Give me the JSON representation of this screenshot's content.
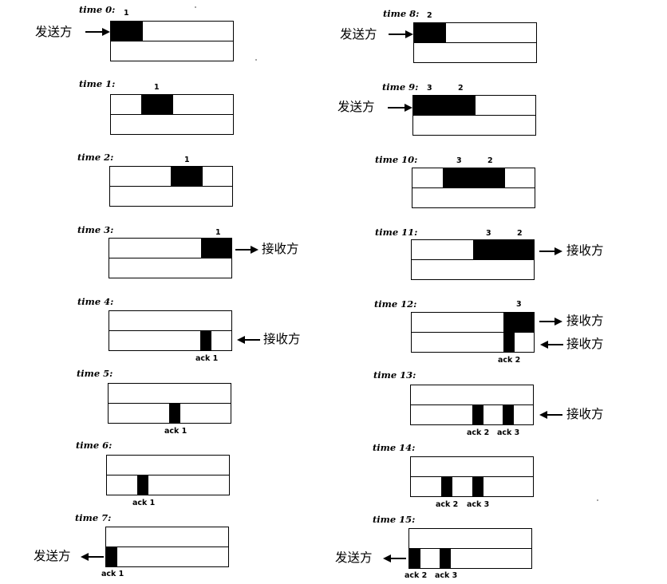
{
  "labels": {
    "sender": "发送方",
    "receiver": "接收方",
    "seg1": "1",
    "seg2": "2",
    "seg3": "3",
    "ack1": "ack 1",
    "ack2": "ack 2",
    "ack3": "ack 3"
  },
  "times": [
    "time 0:",
    "time 1:",
    "time 2:",
    "time 3:",
    "time 4:",
    "time 5:",
    "time 6:",
    "time 7:",
    "time 8:",
    "time 9:",
    "time 10:",
    "time 11:",
    "time 12:",
    "time 13:",
    "time 14:",
    "time 15:"
  ],
  "colors": {
    "ink": "#000000",
    "background": "#ffffff"
  }
}
